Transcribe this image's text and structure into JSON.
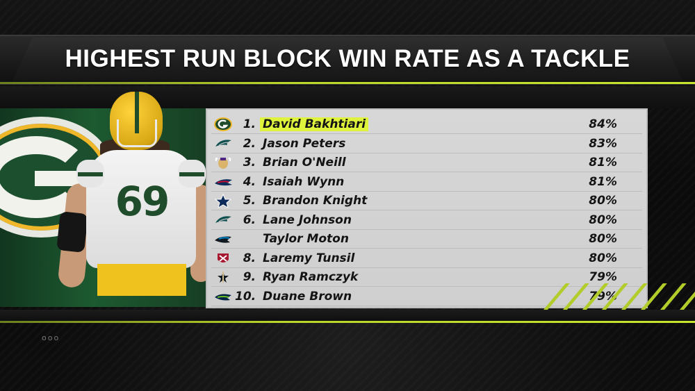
{
  "title": "HIGHEST RUN BLOCK WIN RATE AS A TACKLE",
  "player": {
    "jersey_number": "69",
    "team_colors": {
      "green": "#1f4d2b",
      "gold": "#f0c21e"
    }
  },
  "highlight_color": "#dff23c",
  "rankings": [
    {
      "rank": "1.",
      "name": "David Bakhtiari",
      "value": "84%",
      "team_icon": "packers-logo-icon",
      "highlight": true
    },
    {
      "rank": "2.",
      "name": "Jason Peters",
      "value": "83%",
      "team_icon": "eagles-logo-icon"
    },
    {
      "rank": "3.",
      "name": "Brian O'Neill",
      "value": "81%",
      "team_icon": "vikings-logo-icon"
    },
    {
      "rank": "4.",
      "name": "Isaiah Wynn",
      "value": "81%",
      "team_icon": "patriots-logo-icon"
    },
    {
      "rank": "5.",
      "name": "Brandon Knight",
      "value": "80%",
      "team_icon": "cowboys-logo-icon"
    },
    {
      "rank": "6.",
      "name": "Lane Johnson",
      "value": "80%",
      "team_icon": "eagles-logo-icon"
    },
    {
      "rank": "",
      "name": "Taylor Moton",
      "value": "80%",
      "team_icon": "panthers-logo-icon"
    },
    {
      "rank": "8.",
      "name": "Laremy Tunsil",
      "value": "80%",
      "team_icon": "texans-logo-icon"
    },
    {
      "rank": "9.",
      "name": "Ryan Ramczyk",
      "value": "79%",
      "team_icon": "saints-logo-icon"
    },
    {
      "rank": "10.",
      "name": "Duane Brown",
      "value": "79%",
      "team_icon": "seahawks-logo-icon"
    }
  ],
  "footer": {
    "dots": "ooo"
  }
}
